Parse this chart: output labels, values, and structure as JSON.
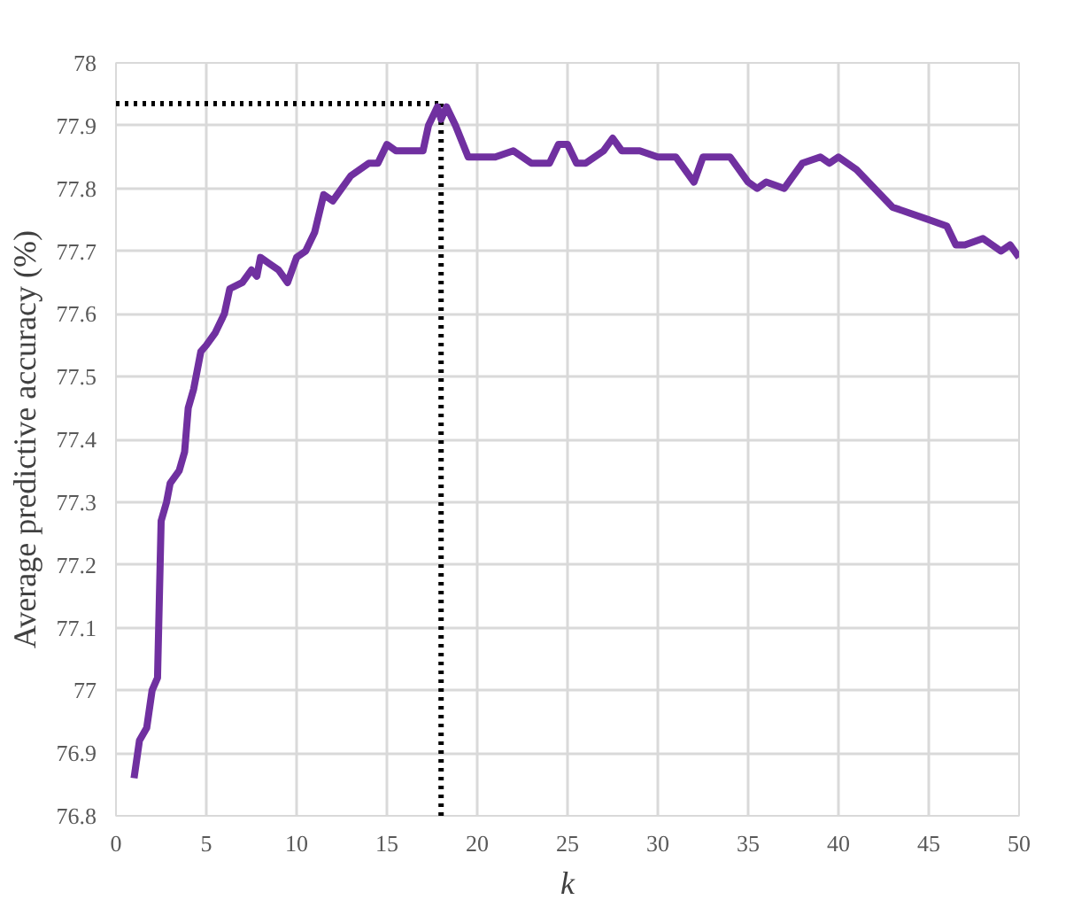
{
  "chart_data": {
    "type": "line",
    "xlabel": "k",
    "ylabel": "Average predictive accuracy (%)",
    "xlim": [
      0,
      50
    ],
    "xticks": [
      0,
      5,
      10,
      15,
      20,
      25,
      30,
      35,
      40,
      45,
      50
    ],
    "ylim": [
      76.8,
      78
    ],
    "yticks": [
      76.8,
      76.9,
      77,
      77.1,
      77.2,
      77.3,
      77.4,
      77.5,
      77.6,
      77.7,
      77.8,
      77.9,
      78
    ],
    "grid": true,
    "marker": "none",
    "line_style": "solid",
    "series": [
      {
        "color": "#7030a0",
        "x": [
          1,
          1.3,
          1.7,
          2,
          2.3,
          2.5,
          2.8,
          3,
          3.5,
          3.8,
          4,
          4.3,
          4.7,
          5,
          5.5,
          6,
          6.3,
          7,
          7.5,
          7.8,
          8,
          8.5,
          9,
          9.5,
          10,
          10.5,
          11,
          11.5,
          12,
          13,
          14,
          14.5,
          15,
          15.5,
          16,
          17,
          17.3,
          17.8,
          18,
          18.3,
          18.8,
          19.5,
          20,
          21,
          22,
          23,
          24,
          24.5,
          25,
          25.5,
          26,
          27,
          27.5,
          28,
          29,
          30,
          31,
          32,
          32.5,
          34,
          35,
          35.5,
          36,
          37,
          38,
          39,
          39.5,
          40,
          41,
          42,
          43,
          44,
          45,
          46,
          46.5,
          47,
          48,
          49,
          49.5,
          50
        ],
        "values": [
          76.86,
          76.92,
          76.94,
          77.0,
          77.02,
          77.27,
          77.3,
          77.33,
          77.35,
          77.38,
          77.45,
          77.48,
          77.54,
          77.55,
          77.57,
          77.6,
          77.64,
          77.65,
          77.67,
          77.66,
          77.69,
          77.68,
          77.67,
          77.65,
          77.69,
          77.7,
          77.73,
          77.79,
          77.78,
          77.82,
          77.84,
          77.84,
          77.87,
          77.86,
          77.86,
          77.86,
          77.9,
          77.93,
          77.91,
          77.93,
          77.9,
          77.85,
          77.85,
          77.85,
          77.86,
          77.84,
          77.84,
          77.87,
          77.87,
          77.84,
          77.84,
          77.86,
          77.88,
          77.86,
          77.86,
          77.85,
          77.85,
          77.81,
          77.85,
          77.85,
          77.81,
          77.8,
          77.81,
          77.8,
          77.84,
          77.85,
          77.84,
          77.85,
          77.83,
          77.8,
          77.77,
          77.76,
          77.75,
          77.74,
          77.71,
          77.71,
          77.72,
          77.7,
          77.71,
          77.69
        ]
      }
    ],
    "ref_lines": [
      {
        "axis": "x",
        "value": 18,
        "color": "#000000",
        "line_style": "dotted"
      },
      {
        "axis": "y",
        "value": 77.935,
        "color": "#000000",
        "line_style": "dotted"
      }
    ]
  }
}
